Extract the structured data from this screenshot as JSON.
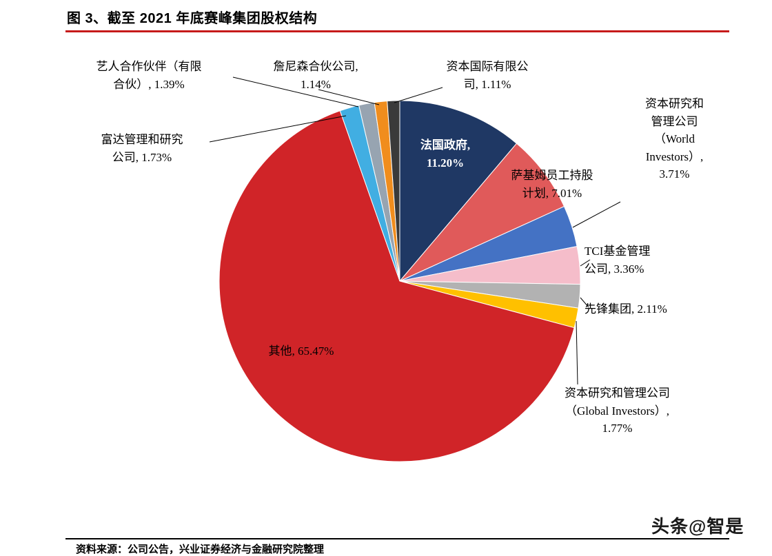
{
  "title": "图 3、截至 2021 年底赛峰集团股权结构",
  "chart_data": {
    "type": "pie",
    "title": "图 3、截至 2021 年底赛峰集团股权结构",
    "legend": "none",
    "label_style": "callouts",
    "start_angle_deg": 0,
    "direction": "clockwise",
    "segments": [
      {
        "id": "faguo",
        "label": "法国政府",
        "value": 11.2,
        "color": "#1F3864"
      },
      {
        "id": "saji",
        "label": "萨基姆员工持股计划",
        "value": 7.01,
        "color": "#E05A5A"
      },
      {
        "id": "world",
        "label": "资本研究和管理公司（World Investors）",
        "value": 3.71,
        "color": "#4472C4"
      },
      {
        "id": "tci",
        "label": "TCI基金管理公司",
        "value": 3.36,
        "color": "#F5BDCA"
      },
      {
        "id": "xianfeng",
        "label": "先锋集团",
        "value": 2.11,
        "color": "#B2B2B2"
      },
      {
        "id": "global",
        "label": "资本研究和管理公司（Global Investors）",
        "value": 1.77,
        "color": "#FFC000"
      },
      {
        "id": "qita",
        "label": "其他",
        "value": 65.47,
        "color": "#D02428"
      },
      {
        "id": "fuda",
        "label": "富达管理和研究公司",
        "value": 1.73,
        "color": "#41AEE2"
      },
      {
        "id": "yiren",
        "label": "艺人合作伙伴（有限合伙）",
        "value": 1.39,
        "color": "#97A4B1"
      },
      {
        "id": "zhanni",
        "label": "詹尼森合伙公司",
        "value": 1.14,
        "color": "#F08D1D"
      },
      {
        "id": "ziben_intl",
        "label": "资本国际有限公司",
        "value": 1.11,
        "color": "#3A3A3A"
      }
    ]
  },
  "callouts": {
    "yiren": "艺人合作伙伴（有限\n合伙）, 1.39%",
    "zhanni": "詹尼森合伙公司, \n1.14%",
    "ziben_intl": "资本国际有限公\n司, 1.11%",
    "fuda": "富达管理和研究\n公司, 1.73%",
    "world": "资本研究和\n管理公司\n（World\nInvestors）, \n3.71%",
    "saji": "萨基姆员工持股\n计划, 7.01%",
    "tci": "TCI基金管理\n公司, 3.36%",
    "xianfeng": "先锋集团, 2.11%",
    "global": "资本研究和管理公司\n（Global Investors）, \n1.77%",
    "qita": "其他, 65.47%",
    "faguo": "法国政府, \n11.20%"
  },
  "footer": {
    "source": "资料来源：公司公告，兴业证券经济与金融研究院整理"
  },
  "watermark": "头条@智是"
}
